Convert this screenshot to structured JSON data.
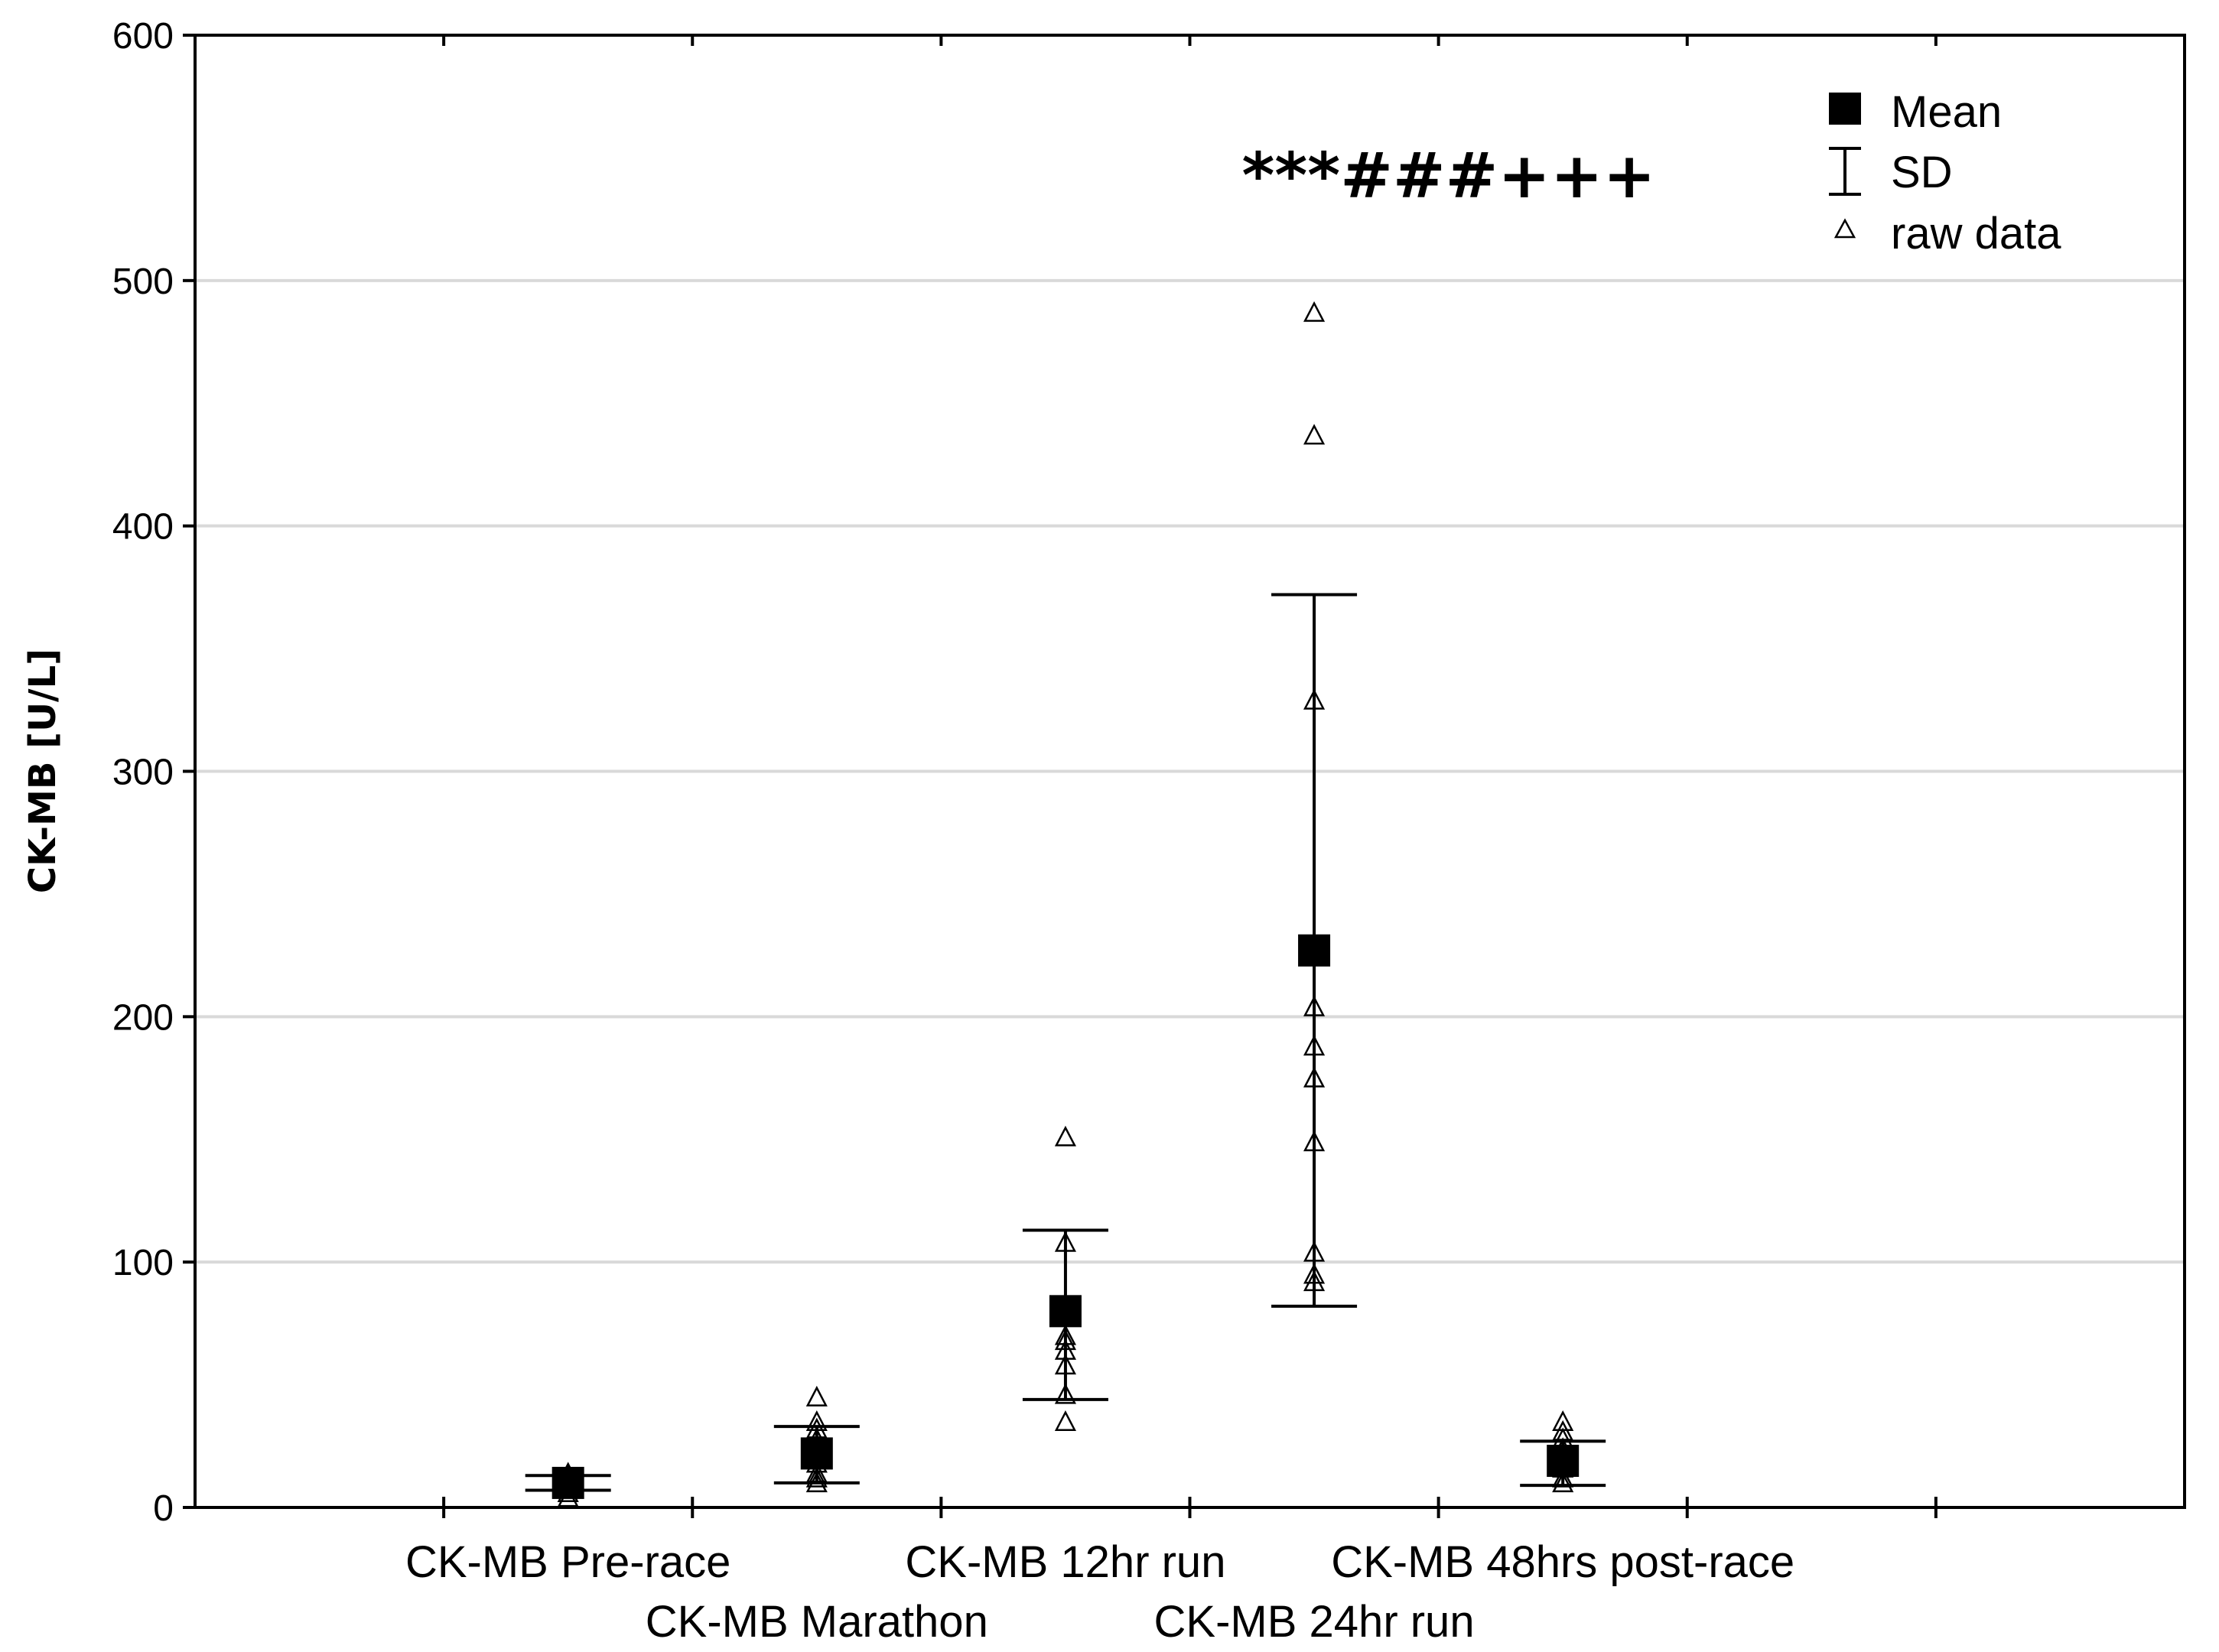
{
  "chart_data": {
    "type": "scatter",
    "ylabel": "CK-MB [U/L]",
    "xlabel": "",
    "ylim": [
      0,
      600
    ],
    "yticks": [
      "0",
      "100",
      "200",
      "300",
      "400",
      "500",
      "600"
    ],
    "grid": "horizontal",
    "legend_position": "top-right",
    "categories": [
      "CK-MB Pre-race",
      "CK-MB Marathon",
      "CK-MB 12hr run",
      "CK-MB 24hr run",
      "CK-MB 48hrs post-race"
    ],
    "series": [
      {
        "name": "Mean",
        "marker": "filled-square",
        "values": [
          10,
          22,
          80,
          227,
          19
        ]
      },
      {
        "name": "SD",
        "marker": "error-bar",
        "lower": [
          7,
          10,
          44,
          82,
          9
        ],
        "upper": [
          13,
          33,
          113,
          372,
          27
        ]
      },
      {
        "name": "raw data",
        "marker": "open-triangle",
        "points": [
          [
            4,
            6,
            8,
            10,
            11,
            13,
            14
          ],
          [
            10,
            12,
            14,
            18,
            22,
            28,
            32,
            35,
            45
          ],
          [
            35,
            46,
            58,
            64,
            68,
            70,
            108,
            151
          ],
          [
            92,
            95,
            104,
            149,
            175,
            188,
            204,
            329,
            437,
            487
          ],
          [
            10,
            12,
            16,
            20,
            24,
            28,
            31,
            35
          ]
        ]
      }
    ],
    "annotation": {
      "text": "***###+++",
      "category": "CK-MB 24hr run"
    },
    "colors": {
      "marker": "#000000",
      "grid": "#d9d9d9",
      "axis": "#000000",
      "background": "#ffffff"
    }
  }
}
